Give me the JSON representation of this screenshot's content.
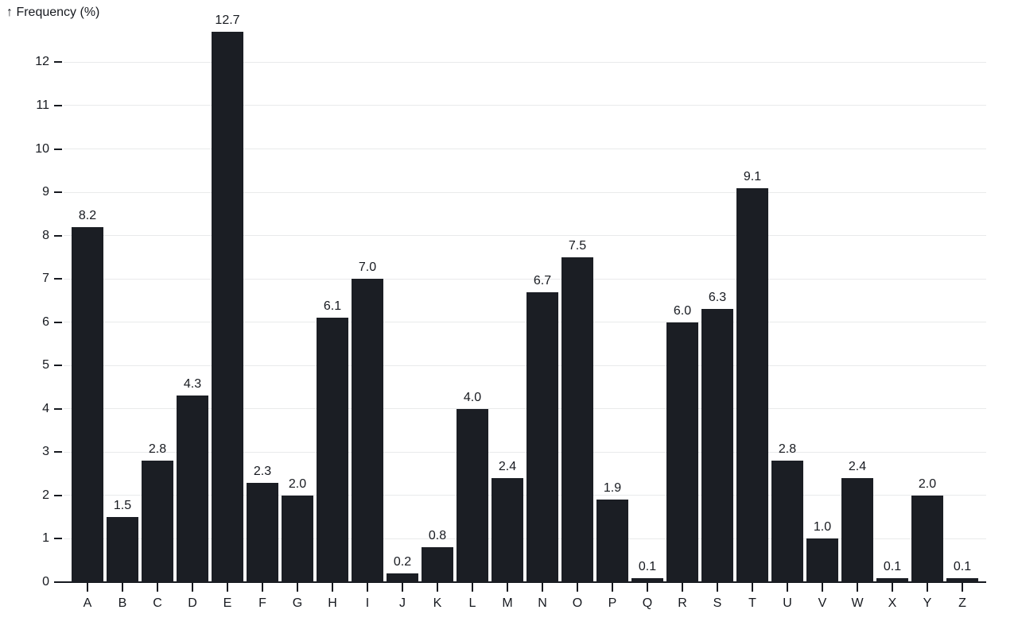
{
  "chart_data": {
    "type": "bar",
    "title": "",
    "ylabel": "↑ Frequency (%)",
    "xlabel": "",
    "categories": [
      "A",
      "B",
      "C",
      "D",
      "E",
      "F",
      "G",
      "H",
      "I",
      "J",
      "K",
      "L",
      "M",
      "N",
      "O",
      "P",
      "Q",
      "R",
      "S",
      "T",
      "U",
      "V",
      "W",
      "X",
      "Y",
      "Z"
    ],
    "values": [
      8.2,
      1.5,
      2.8,
      4.3,
      12.7,
      2.3,
      2.0,
      6.1,
      7.0,
      0.2,
      0.8,
      4.0,
      2.4,
      6.7,
      7.5,
      1.9,
      0.1,
      6.0,
      6.3,
      9.1,
      2.8,
      1.0,
      2.4,
      0.1,
      2.0,
      0.1
    ],
    "value_labels": [
      "8.2",
      "1.5",
      "2.8",
      "4.3",
      "12.7",
      "2.3",
      "2.0",
      "6.1",
      "7.0",
      "0.2",
      "0.8",
      "4.0",
      "2.4",
      "6.7",
      "7.5",
      "1.9",
      "0.1",
      "6.0",
      "6.3",
      "9.1",
      "2.8",
      "1.0",
      "2.4",
      "0.1",
      "2.0",
      "0.1"
    ],
    "yticks": [
      0,
      1,
      2,
      3,
      4,
      5,
      6,
      7,
      8,
      9,
      10,
      11,
      12
    ],
    "ylim": [
      0,
      13
    ],
    "grid": true,
    "legend": "none",
    "bar_color": "#1b1e24",
    "text_color": "#16191f",
    "grid_color": "#e9eaeb",
    "background": "#ffffff"
  }
}
